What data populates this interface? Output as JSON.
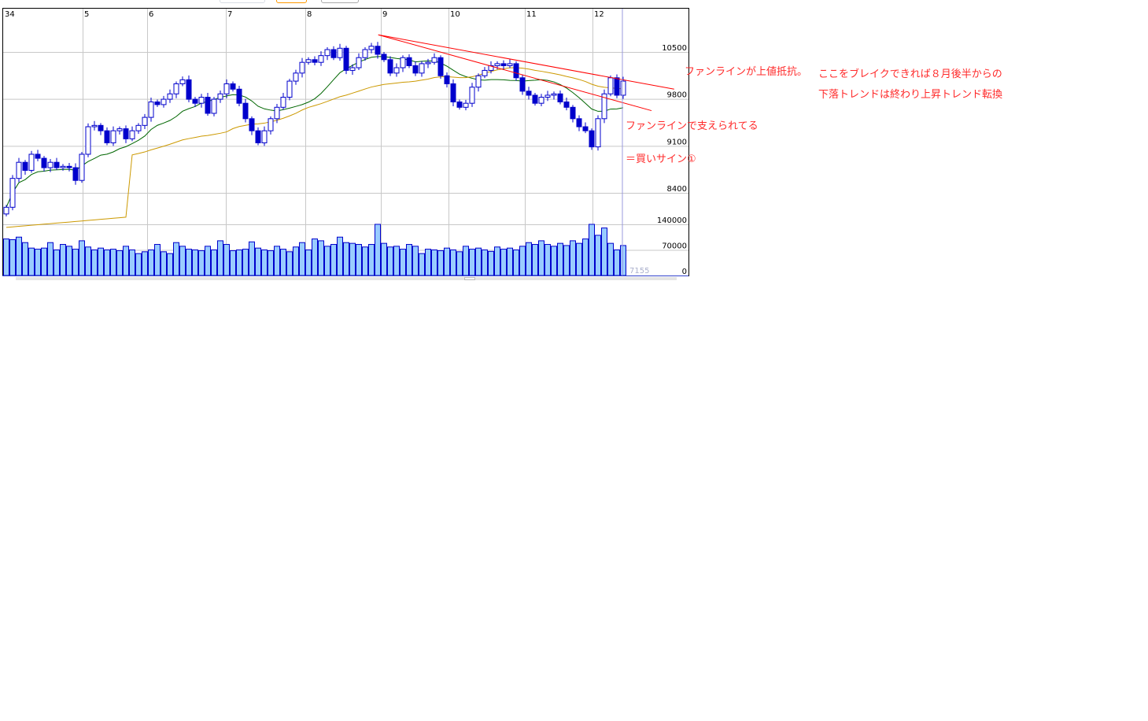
{
  "toolbar": {
    "buttons": [
      {
        "state": "normal"
      },
      {
        "state": "active",
        "color": "#ff9900"
      },
      {
        "state": "normal"
      }
    ]
  },
  "colors": {
    "candle": "#0000cc",
    "volume_fill": "#99ccff",
    "ma_short": "#006600",
    "ma_long": "#cc9900",
    "fan_line": "#ff0000",
    "annotation": "#ff2a2a",
    "cursor": "#9999dd"
  },
  "chart_data": {
    "type": "candlestick",
    "x_month_labels": [
      "34",
      "5",
      "6",
      "7",
      "8",
      "9",
      "10",
      "11",
      "12"
    ],
    "price_ticks": [
      10500,
      9800,
      9100,
      8400
    ],
    "volume_ticks": [
      140000,
      70000,
      0
    ],
    "grid": true,
    "open": [
      8050,
      8150,
      8580,
      8820,
      8700,
      8940,
      8880,
      8740,
      8820,
      8740,
      8760,
      8740,
      8550,
      8940,
      9350,
      9370,
      9290,
      9110,
      9290,
      9320,
      9170,
      9290,
      9370,
      9490,
      9720,
      9680,
      9760,
      9840,
      9990,
      10050,
      9760,
      9700,
      9790,
      9550,
      9760,
      9840,
      9990,
      9910,
      9700,
      9470,
      9290,
      9110,
      9290,
      9470,
      9640,
      9790,
      10030,
      10150,
      10310,
      10350,
      10310,
      10410,
      10500,
      10380,
      10520,
      10190,
      10230,
      10380,
      10500,
      10550,
      10430,
      10350,
      10150,
      10230,
      10380,
      10260,
      10150,
      10290,
      10310,
      10380,
      10110,
      9990,
      9720,
      9640,
      9700,
      9940,
      10110,
      10190,
      10260,
      10290,
      10260,
      10290,
      10080,
      9880,
      9820,
      9700,
      9790,
      9820,
      9840,
      9720,
      9640,
      9470,
      9350,
      9290,
      9050,
      9470,
      9840,
      10080,
      9820
    ],
    "close": [
      8150,
      8580,
      8820,
      8700,
      8940,
      8880,
      8740,
      8820,
      8740,
      8760,
      8740,
      8550,
      8940,
      9350,
      9370,
      9290,
      9110,
      9290,
      9320,
      9170,
      9290,
      9370,
      9490,
      9720,
      9680,
      9760,
      9840,
      9990,
      10050,
      9760,
      9700,
      9790,
      9550,
      9760,
      9840,
      9990,
      9910,
      9700,
      9470,
      9290,
      9110,
      9290,
      9470,
      9640,
      9790,
      10030,
      10150,
      10310,
      10350,
      10310,
      10410,
      10500,
      10380,
      10520,
      10190,
      10230,
      10380,
      10500,
      10550,
      10430,
      10350,
      10150,
      10230,
      10380,
      10260,
      10150,
      10290,
      10310,
      10380,
      10110,
      9990,
      9720,
      9640,
      9700,
      9940,
      10110,
      10190,
      10260,
      10290,
      10260,
      10290,
      10080,
      9880,
      9820,
      9700,
      9790,
      9820,
      9840,
      9720,
      9640,
      9470,
      9350,
      9290,
      9050,
      9470,
      9840,
      10080,
      9820,
      10030
    ],
    "volume": [
      100000,
      98000,
      105000,
      90000,
      75000,
      72000,
      75000,
      90000,
      70000,
      85000,
      80000,
      72000,
      95000,
      78000,
      70000,
      75000,
      70000,
      72000,
      68000,
      80000,
      70000,
      60000,
      65000,
      70000,
      85000,
      65000,
      60000,
      90000,
      80000,
      72000,
      70000,
      68000,
      80000,
      70000,
      95000,
      85000,
      68000,
      70000,
      72000,
      92000,
      75000,
      70000,
      68000,
      80000,
      72000,
      65000,
      78000,
      90000,
      70000,
      100000,
      95000,
      80000,
      85000,
      105000,
      90000,
      88000,
      85000,
      78000,
      85000,
      140000,
      88000,
      78000,
      80000,
      72000,
      85000,
      80000,
      60000,
      72000,
      70000,
      68000,
      75000,
      70000,
      65000,
      80000,
      72000,
      75000,
      70000,
      66000,
      78000,
      72000,
      75000,
      70000,
      80000,
      90000,
      85000,
      95000,
      85000,
      80000,
      88000,
      82000,
      95000,
      88000,
      100000,
      140000,
      110000,
      130000,
      88000,
      70000,
      82000
    ],
    "moving_averages": [
      {
        "color": "#006600"
      },
      {
        "color": "#cc9900"
      }
    ],
    "fan_lines": [
      {
        "start": {
          "index": 59.1,
          "price": 10720
        },
        "end": {
          "index": 106.1,
          "price": 9910
        }
      },
      {
        "start": {
          "index": 59.1,
          "price": 10720
        },
        "end": {
          "index": 102.5,
          "price": 9590
        }
      }
    ],
    "volume_readout": "7155"
  },
  "annotations": {
    "resistance": "ファンラインが上値抵抗。",
    "break_line1": "ここをブレイクできれば８月後半からの",
    "break_line2": "下落トレンドは終わり上昇トレンド転換",
    "support_line1": "ファンラインで支えられてる",
    "support_line2": "＝買いサイン①"
  }
}
